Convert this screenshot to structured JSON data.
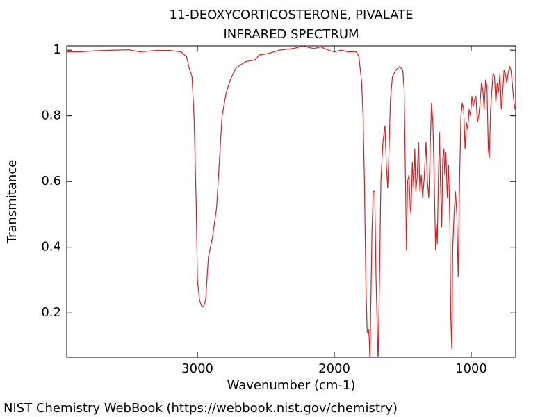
{
  "chart_data": {
    "type": "line",
    "title": "11-DEOXYCORTICOSTERONE, PIVALATE",
    "subtitle": "INFRARED SPECTRUM",
    "xlabel": "Wavenumber (cm-1)",
    "ylabel": "Transmitance",
    "color": "#e41a1c",
    "xlim": [
      3955,
      675
    ],
    "ylim": [
      0.065,
      1.013
    ],
    "xticks": [
      3000,
      2000,
      1000
    ],
    "yticks": [
      0.2,
      0.4,
      0.6,
      0.8,
      1
    ],
    "x": [
      3954,
      3850,
      3750,
      3600,
      3500,
      3420,
      3300,
      3200,
      3120,
      3080,
      3060,
      3040,
      3025,
      3010,
      3000,
      2985,
      2970,
      2955,
      2940,
      2920,
      2890,
      2860,
      2840,
      2820,
      2790,
      2760,
      2720,
      2650,
      2580,
      2550,
      2480,
      2400,
      2300,
      2230,
      2150,
      2100,
      2030,
      2000,
      1950,
      1900,
      1840,
      1820,
      1800,
      1790,
      1780,
      1770,
      1760,
      1750,
      1745,
      1740,
      1725,
      1715,
      1705,
      1695,
      1680,
      1670,
      1660,
      1645,
      1630,
      1620,
      1610,
      1600,
      1590,
      1575,
      1550,
      1525,
      1500,
      1490,
      1480,
      1473,
      1465,
      1455,
      1445,
      1440,
      1430,
      1420,
      1412,
      1405,
      1395,
      1385,
      1375,
      1365,
      1355,
      1345,
      1330,
      1320,
      1310,
      1300,
      1290,
      1280,
      1270,
      1260,
      1255,
      1248,
      1240,
      1232,
      1225,
      1215,
      1208,
      1200,
      1193,
      1185,
      1175,
      1165,
      1155,
      1150,
      1142,
      1135,
      1125,
      1115,
      1105,
      1095,
      1085,
      1075,
      1065,
      1055,
      1045,
      1035,
      1025,
      1015,
      1005,
      995,
      985,
      975,
      965,
      955,
      945,
      935,
      925,
      915,
      905,
      895,
      885,
      875,
      868,
      858,
      850,
      840,
      830,
      820,
      810,
      800,
      790,
      780,
      770,
      760,
      750,
      740,
      730,
      720,
      710,
      700,
      690,
      680
    ],
    "values": [
      0.995,
      0.995,
      0.998,
      1.0,
      1.001,
      0.995,
      0.999,
      0.999,
      0.995,
      0.98,
      0.945,
      0.92,
      0.8,
      0.55,
      0.3,
      0.24,
      0.22,
      0.218,
      0.24,
      0.37,
      0.43,
      0.52,
      0.66,
      0.8,
      0.87,
      0.91,
      0.945,
      0.965,
      0.97,
      0.985,
      0.99,
      1.0,
      1.005,
      1.012,
      1.005,
      1.01,
      0.998,
      0.995,
      1.0,
      0.995,
      0.995,
      0.98,
      0.9,
      0.8,
      0.6,
      0.3,
      0.14,
      0.15,
      0.12,
      0.05,
      0.45,
      0.57,
      0.57,
      0.3,
      0.05,
      0.3,
      0.6,
      0.72,
      0.77,
      0.65,
      0.58,
      0.7,
      0.85,
      0.92,
      0.94,
      0.95,
      0.94,
      0.88,
      0.6,
      0.39,
      0.6,
      0.62,
      0.52,
      0.5,
      0.66,
      0.58,
      0.7,
      0.57,
      0.61,
      0.72,
      0.57,
      0.62,
      0.55,
      0.6,
      0.72,
      0.6,
      0.55,
      0.7,
      0.84,
      0.78,
      0.6,
      0.39,
      0.47,
      0.41,
      0.6,
      0.75,
      0.6,
      0.46,
      0.67,
      0.7,
      0.62,
      0.69,
      0.55,
      0.65,
      0.45,
      0.2,
      0.09,
      0.4,
      0.5,
      0.57,
      0.5,
      0.31,
      0.6,
      0.8,
      0.84,
      0.82,
      0.7,
      0.78,
      0.76,
      0.82,
      0.8,
      0.86,
      0.83,
      0.85,
      0.86,
      0.78,
      0.8,
      0.84,
      0.9,
      0.88,
      0.82,
      0.91,
      0.89,
      0.7,
      0.67,
      0.82,
      0.87,
      0.93,
      0.92,
      0.84,
      0.9,
      0.87,
      0.93,
      0.82,
      0.87,
      0.94,
      0.93,
      0.9,
      0.93,
      0.95,
      0.94,
      0.9,
      0.85,
      0.82
    ]
  },
  "footer": "NIST Chemistry WebBook (https://webbook.nist.gov/chemistry)"
}
